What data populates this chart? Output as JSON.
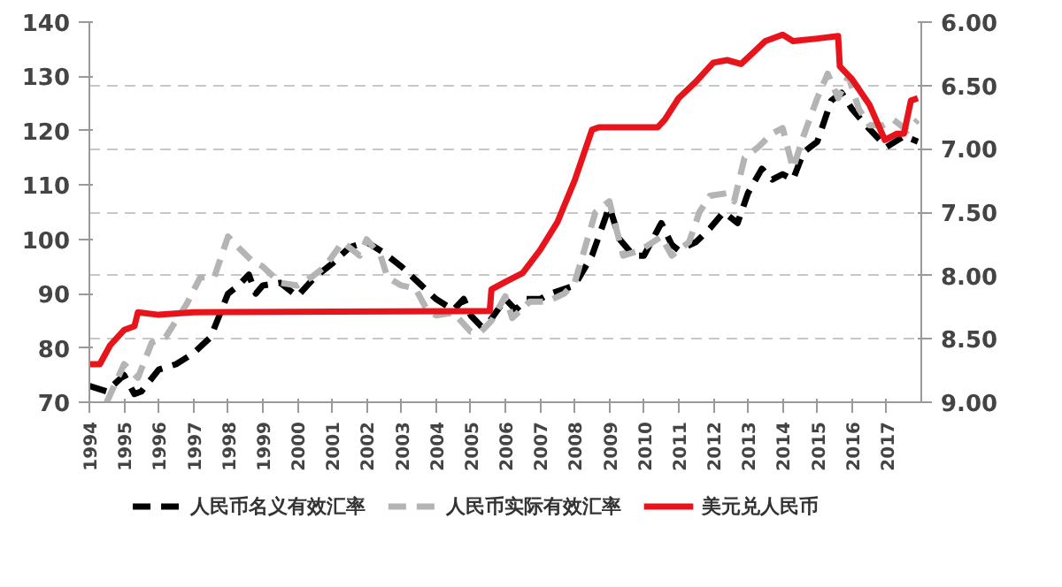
{
  "chart_data": {
    "type": "line",
    "xlim": [
      1994,
      2018
    ],
    "xticks": [
      1994,
      1995,
      1996,
      1997,
      1998,
      1999,
      2000,
      2001,
      2002,
      2003,
      2004,
      2005,
      2006,
      2007,
      2008,
      2009,
      2010,
      2011,
      2012,
      2013,
      2014,
      2015,
      2016,
      2017
    ],
    "ylim": [
      70,
      140
    ],
    "yticks": [
      70,
      80,
      90,
      100,
      110,
      120,
      130,
      140
    ],
    "y2lim": [
      9.0,
      6.0
    ],
    "y2ticks": [
      {
        "value": 6,
        "label": "6.00"
      },
      {
        "value": 6.5,
        "label": "6.50"
      },
      {
        "value": 7,
        "label": "7.00"
      },
      {
        "value": 7.5,
        "label": "7.50"
      },
      {
        "value": 8,
        "label": "8.00"
      },
      {
        "value": 8.5,
        "label": "8.50"
      },
      {
        "value": 9,
        "label": "9.00"
      }
    ],
    "grid": "y",
    "legend": "bottom",
    "series": [
      {
        "name": "人民币名义有效汇率",
        "color": "#000000",
        "line_style": "dashed",
        "x": [
          1994.0,
          1994.5,
          1995.0,
          1995.3,
          1995.5,
          1996.0,
          1996.5,
          1997.0,
          1997.5,
          1998.0,
          1998.3,
          1998.6,
          1998.8,
          1999.0,
          1999.5,
          2000.0,
          2000.5,
          2001.0,
          2001.5,
          2002.0,
          2002.5,
          2003.0,
          2003.5,
          2004.0,
          2004.5,
          2004.8,
          2005.0,
          2005.3,
          2005.5,
          2006.0,
          2006.3,
          2006.6,
          2007.0,
          2007.3,
          2008.0,
          2008.5,
          2009.0,
          2009.3,
          2009.7,
          2010.0,
          2010.5,
          2010.8,
          2011.0,
          2011.5,
          2011.9,
          2012.3,
          2012.7,
          2013.0,
          2013.4,
          2013.7,
          2014.0,
          2014.3,
          2014.6,
          2015.0,
          2015.4,
          2015.7,
          2016.0,
          2016.4,
          2016.7,
          2017.0,
          2017.5,
          2017.9
        ],
        "values": [
          73,
          72,
          75,
          71.5,
          72,
          76,
          77,
          79,
          82,
          90,
          91.5,
          93.5,
          90,
          91.5,
          92,
          89.5,
          93,
          95.5,
          98.5,
          99.5,
          97.5,
          95,
          92,
          89,
          87,
          89,
          86,
          84,
          84.5,
          89,
          87,
          89,
          89,
          90,
          91.5,
          97,
          106,
          100,
          97,
          97,
          103,
          99,
          98,
          99.5,
          102,
          105,
          103,
          108.5,
          113,
          111,
          112,
          111,
          116,
          118,
          125.5,
          127,
          124,
          121,
          119,
          117,
          119,
          118
        ]
      },
      {
        "name": "人民币实际有效汇率",
        "color": "#b4b4b4",
        "line_style": "dashed",
        "x": [
          1994.5,
          1995.0,
          1995.4,
          1995.8,
          1996.2,
          1996.5,
          1996.8,
          1997.2,
          1997.6,
          1998.0,
          1998.3,
          1998.7,
          1999.0,
          1999.5,
          2000.0,
          2000.4,
          2000.8,
          2001.3,
          2001.8,
          2002.0,
          2002.4,
          2002.6,
          2003.0,
          2003.4,
          2003.7,
          2004.0,
          2004.5,
          2005.0,
          2005.3,
          2005.6,
          2006.0,
          2006.2,
          2006.7,
          2007.2,
          2007.7,
          2008.0,
          2008.6,
          2009.0,
          2009.4,
          2009.9,
          2010.5,
          2010.8,
          2011.3,
          2011.6,
          2011.9,
          2012.4,
          2012.6,
          2012.9,
          2013.3,
          2013.7,
          2014.0,
          2014.3,
          2014.6,
          2015.0,
          2015.3,
          2015.6,
          2015.9,
          2016.2,
          2016.5,
          2016.9,
          2017.2,
          2017.6,
          2017.9
        ],
        "values": [
          70,
          77,
          74.5,
          81,
          82,
          85,
          88,
          93,
          93,
          100.5,
          98.5,
          96,
          95,
          92,
          91.5,
          93,
          95,
          99.5,
          97,
          100,
          97,
          93,
          91.5,
          91,
          87.5,
          86,
          86.5,
          83,
          83,
          85,
          89.5,
          85.5,
          88.5,
          88.5,
          90,
          92,
          105,
          107,
          97,
          98,
          100.5,
          97,
          99.5,
          105,
          108,
          108.5,
          107,
          115,
          117,
          119.5,
          120.5,
          113,
          119,
          126,
          130.5,
          126,
          130,
          124,
          121,
          121,
          122,
          120,
          122
        ]
      },
      {
        "name": "美元兑人民币",
        "color": "#e8141c",
        "line_style": "solid",
        "axis": "y2",
        "x": [
          1994.0,
          1994.3,
          1994.6,
          1995.0,
          1995.3,
          1995.4,
          1996.0,
          1997.0,
          2005.55,
          2005.6,
          2006.0,
          2006.5,
          2007.0,
          2007.5,
          2008.0,
          2008.5,
          2008.7,
          2010.4,
          2010.6,
          2011.0,
          2011.5,
          2012.0,
          2012.4,
          2012.8,
          2013.0,
          2013.5,
          2014.0,
          2014.3,
          2015.0,
          2015.6,
          2015.65,
          2016.0,
          2016.5,
          2016.95,
          2017.3,
          2017.5,
          2017.7,
          2017.9
        ],
        "values": [
          8.7,
          8.7,
          8.55,
          8.43,
          8.4,
          8.29,
          8.31,
          8.29,
          8.28,
          8.11,
          8.05,
          7.98,
          7.8,
          7.58,
          7.25,
          6.85,
          6.83,
          6.83,
          6.77,
          6.6,
          6.47,
          6.32,
          6.3,
          6.33,
          6.28,
          6.15,
          6.1,
          6.15,
          6.13,
          6.11,
          6.35,
          6.45,
          6.65,
          6.93,
          6.88,
          6.88,
          6.62,
          6.6
        ]
      }
    ]
  }
}
